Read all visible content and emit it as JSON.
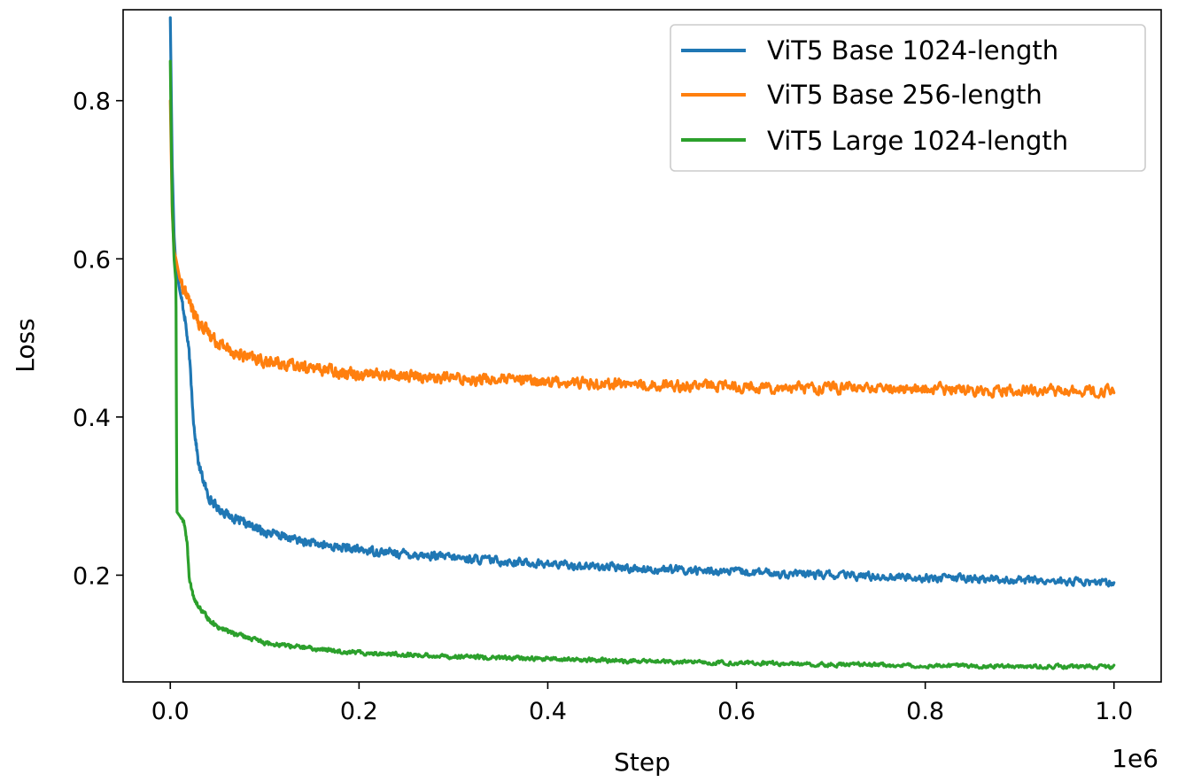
{
  "chart_data": {
    "type": "line",
    "title": "",
    "xlabel": "Step",
    "ylabel": "Loss",
    "x_offset_label": "1e6",
    "xlim": [
      -0.05,
      1.05
    ],
    "ylim": [
      0.065,
      0.915
    ],
    "x_ticks": [
      0.0,
      0.2,
      0.4,
      0.6,
      0.8,
      1.0
    ],
    "x_tick_labels": [
      "0.0",
      "0.2",
      "0.4",
      "0.6",
      "0.8",
      "1.0"
    ],
    "y_ticks": [
      0.2,
      0.4,
      0.6,
      0.8
    ],
    "y_tick_labels": [
      "0.2",
      "0.4",
      "0.6",
      "0.8"
    ],
    "grid": false,
    "legend_position": "top-right",
    "series": [
      {
        "name": "ViT5 Base 1024-length",
        "color": "#1f77b4",
        "x": [
          0.0,
          0.002,
          0.004,
          0.006,
          0.01,
          0.015,
          0.02,
          0.025,
          0.03,
          0.04,
          0.05,
          0.07,
          0.1,
          0.15,
          0.2,
          0.3,
          0.4,
          0.5,
          0.6,
          0.7,
          0.8,
          0.9,
          1.0
        ],
        "values": [
          0.905,
          0.72,
          0.63,
          0.59,
          0.56,
          0.53,
          0.48,
          0.39,
          0.34,
          0.3,
          0.285,
          0.27,
          0.255,
          0.24,
          0.232,
          0.222,
          0.214,
          0.208,
          0.204,
          0.2,
          0.197,
          0.194,
          0.19
        ],
        "noise": 0.008
      },
      {
        "name": "ViT5 Base 256-length",
        "color": "#ff7f0e",
        "x": [
          0.0,
          0.002,
          0.004,
          0.006,
          0.01,
          0.02,
          0.03,
          0.05,
          0.07,
          0.1,
          0.15,
          0.2,
          0.3,
          0.4,
          0.5,
          0.6,
          0.7,
          0.8,
          0.9,
          1.0
        ],
        "values": [
          0.8,
          0.66,
          0.61,
          0.6,
          0.575,
          0.545,
          0.52,
          0.495,
          0.48,
          0.47,
          0.462,
          0.455,
          0.449,
          0.445,
          0.441,
          0.439,
          0.437,
          0.435,
          0.434,
          0.432
        ],
        "noise": 0.011
      },
      {
        "name": "ViT5 Large 1024-length",
        "color": "#2ca02c",
        "x": [
          0.0,
          0.001,
          0.002,
          0.004,
          0.006,
          0.0065,
          0.007,
          0.01,
          0.015,
          0.018,
          0.02,
          0.025,
          0.03,
          0.04,
          0.05,
          0.07,
          0.1,
          0.15,
          0.2,
          0.3,
          0.4,
          0.5,
          0.6,
          0.7,
          0.8,
          0.9,
          1.0
        ],
        "values": [
          0.85,
          0.75,
          0.67,
          0.6,
          0.57,
          0.4,
          0.28,
          0.275,
          0.265,
          0.24,
          0.195,
          0.17,
          0.16,
          0.145,
          0.135,
          0.125,
          0.115,
          0.107,
          0.102,
          0.097,
          0.094,
          0.091,
          0.089,
          0.087,
          0.086,
          0.085,
          0.084
        ],
        "noise": 0.004
      }
    ]
  }
}
